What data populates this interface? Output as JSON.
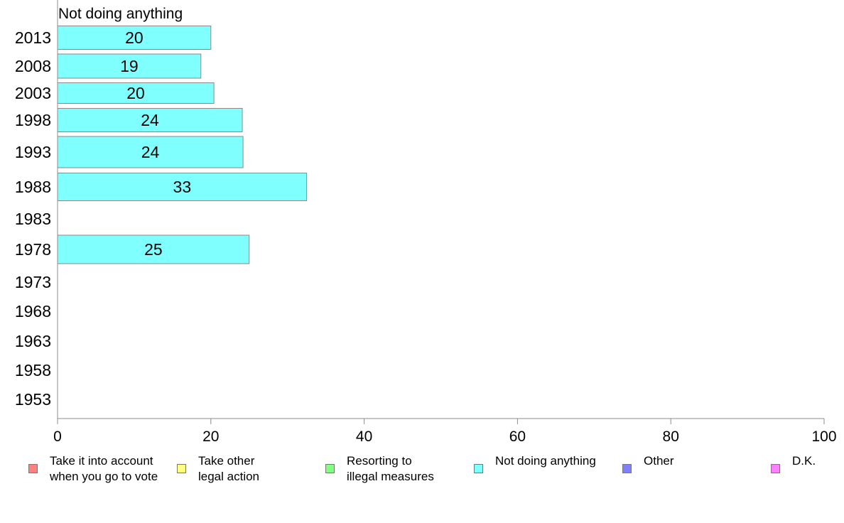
{
  "chart_data": {
    "type": "bar",
    "orientation": "horizontal",
    "title": "Not doing anything",
    "categories": [
      "2013",
      "2008",
      "2003",
      "1998",
      "1993",
      "1988",
      "1983",
      "1978",
      "1973",
      "1968",
      "1963",
      "1958",
      "1953"
    ],
    "series": [
      {
        "name": "Not doing anything",
        "color": "#80ffff",
        "values": [
          20,
          19,
          20,
          24,
          24,
          33,
          null,
          25,
          null,
          null,
          null,
          null,
          null
        ],
        "plotted_values": [
          20,
          18.7,
          20.4,
          24.1,
          24.2,
          32.5,
          null,
          25,
          null,
          null,
          null,
          null,
          null
        ]
      }
    ],
    "xlim": [
      0,
      100
    ],
    "xticks": [
      "0",
      "20",
      "40",
      "60",
      "80",
      "100"
    ],
    "grid": false,
    "legend_position": "bottom",
    "legend": [
      {
        "label": "Take it into account\nwhen you go to vote",
        "color": "#ff8080"
      },
      {
        "label": "Take other\nlegal action",
        "color": "#ffff80"
      },
      {
        "label": "Resorting to\nillegal measures",
        "color": "#80ff80"
      },
      {
        "label": "Not doing anything",
        "color": "#80ffff"
      },
      {
        "label": "Other",
        "color": "#8080ff"
      },
      {
        "label": "D.K.",
        "color": "#ff80ff"
      }
    ]
  }
}
